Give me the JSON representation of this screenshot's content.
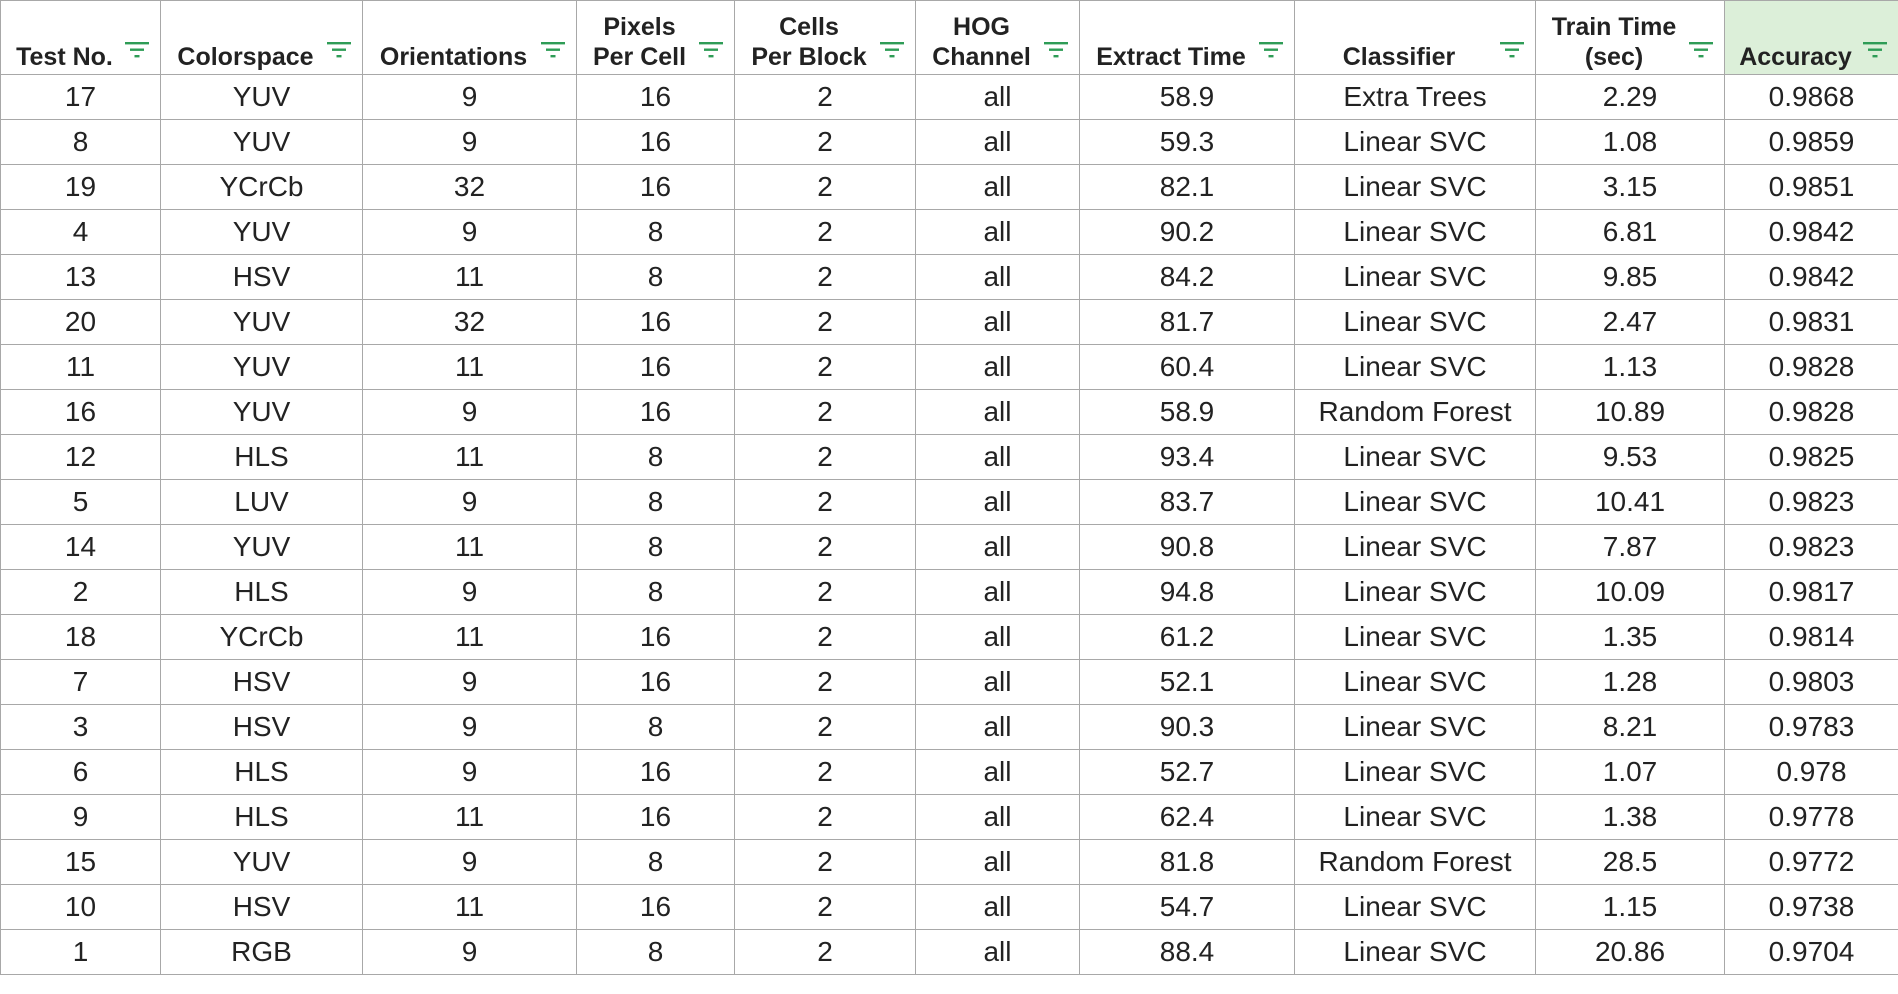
{
  "sheet": {
    "columns": [
      {
        "key": "test_no",
        "line1": "",
        "line2": "Test No.",
        "filter_icon": "filter-icon"
      },
      {
        "key": "colorspace",
        "line1": "",
        "line2": "Colorspace",
        "filter_icon": "filter-icon"
      },
      {
        "key": "orientations",
        "line1": "",
        "line2": "Orientations",
        "filter_icon": "filter-icon"
      },
      {
        "key": "pixels_per_cell",
        "line1": "Pixels",
        "line2": "Per Cell",
        "filter_icon": "filter-icon"
      },
      {
        "key": "cells_per_block",
        "line1": "Cells",
        "line2": "Per Block",
        "filter_icon": "filter-icon"
      },
      {
        "key": "hog_channel",
        "line1": "HOG",
        "line2": "Channel",
        "filter_icon": "filter-icon"
      },
      {
        "key": "extract_time",
        "line1": "",
        "line2": "Extract Time",
        "filter_icon": "filter-icon"
      },
      {
        "key": "classifier",
        "line1": "",
        "line2": "Classifier",
        "filter_icon": "filter-icon"
      },
      {
        "key": "train_time",
        "line1": "Train Time",
        "line2": "(sec)",
        "filter_icon": "filter-icon"
      },
      {
        "key": "accuracy",
        "line1": "",
        "line2": "Accuracy",
        "filter_icon": "filter-icon",
        "sorted": true
      }
    ],
    "colors": {
      "grid": "#a8a8a8",
      "filter_icon": "#2e9c56",
      "sorted_header_bg": "#dcefd9"
    },
    "rows": [
      [
        "17",
        "YUV",
        "9",
        "16",
        "2",
        "all",
        "58.9",
        "Extra Trees",
        "2.29",
        "0.9868"
      ],
      [
        "8",
        "YUV",
        "9",
        "16",
        "2",
        "all",
        "59.3",
        "Linear SVC",
        "1.08",
        "0.9859"
      ],
      [
        "19",
        "YCrCb",
        "32",
        "16",
        "2",
        "all",
        "82.1",
        "Linear SVC",
        "3.15",
        "0.9851"
      ],
      [
        "4",
        "YUV",
        "9",
        "8",
        "2",
        "all",
        "90.2",
        "Linear SVC",
        "6.81",
        "0.9842"
      ],
      [
        "13",
        "HSV",
        "11",
        "8",
        "2",
        "all",
        "84.2",
        "Linear SVC",
        "9.85",
        "0.9842"
      ],
      [
        "20",
        "YUV",
        "32",
        "16",
        "2",
        "all",
        "81.7",
        "Linear SVC",
        "2.47",
        "0.9831"
      ],
      [
        "11",
        "YUV",
        "11",
        "16",
        "2",
        "all",
        "60.4",
        "Linear SVC",
        "1.13",
        "0.9828"
      ],
      [
        "16",
        "YUV",
        "9",
        "16",
        "2",
        "all",
        "58.9",
        "Random Forest",
        "10.89",
        "0.9828"
      ],
      [
        "12",
        "HLS",
        "11",
        "8",
        "2",
        "all",
        "93.4",
        "Linear SVC",
        "9.53",
        "0.9825"
      ],
      [
        "5",
        "LUV",
        "9",
        "8",
        "2",
        "all",
        "83.7",
        "Linear SVC",
        "10.41",
        "0.9823"
      ],
      [
        "14",
        "YUV",
        "11",
        "8",
        "2",
        "all",
        "90.8",
        "Linear SVC",
        "7.87",
        "0.9823"
      ],
      [
        "2",
        "HLS",
        "9",
        "8",
        "2",
        "all",
        "94.8",
        "Linear SVC",
        "10.09",
        "0.9817"
      ],
      [
        "18",
        "YCrCb",
        "11",
        "16",
        "2",
        "all",
        "61.2",
        "Linear SVC",
        "1.35",
        "0.9814"
      ],
      [
        "7",
        "HSV",
        "9",
        "16",
        "2",
        "all",
        "52.1",
        "Linear SVC",
        "1.28",
        "0.9803"
      ],
      [
        "3",
        "HSV",
        "9",
        "8",
        "2",
        "all",
        "90.3",
        "Linear SVC",
        "8.21",
        "0.9783"
      ],
      [
        "6",
        "HLS",
        "9",
        "16",
        "2",
        "all",
        "52.7",
        "Linear SVC",
        "1.07",
        "0.978"
      ],
      [
        "9",
        "HLS",
        "11",
        "16",
        "2",
        "all",
        "62.4",
        "Linear SVC",
        "1.38",
        "0.9778"
      ],
      [
        "15",
        "YUV",
        "9",
        "8",
        "2",
        "all",
        "81.8",
        "Random Forest",
        "28.5",
        "0.9772"
      ],
      [
        "10",
        "HSV",
        "11",
        "16",
        "2",
        "all",
        "54.7",
        "Linear SVC",
        "1.15",
        "0.9738"
      ],
      [
        "1",
        "RGB",
        "9",
        "8",
        "2",
        "all",
        "88.4",
        "Linear SVC",
        "20.86",
        "0.9704"
      ]
    ]
  }
}
